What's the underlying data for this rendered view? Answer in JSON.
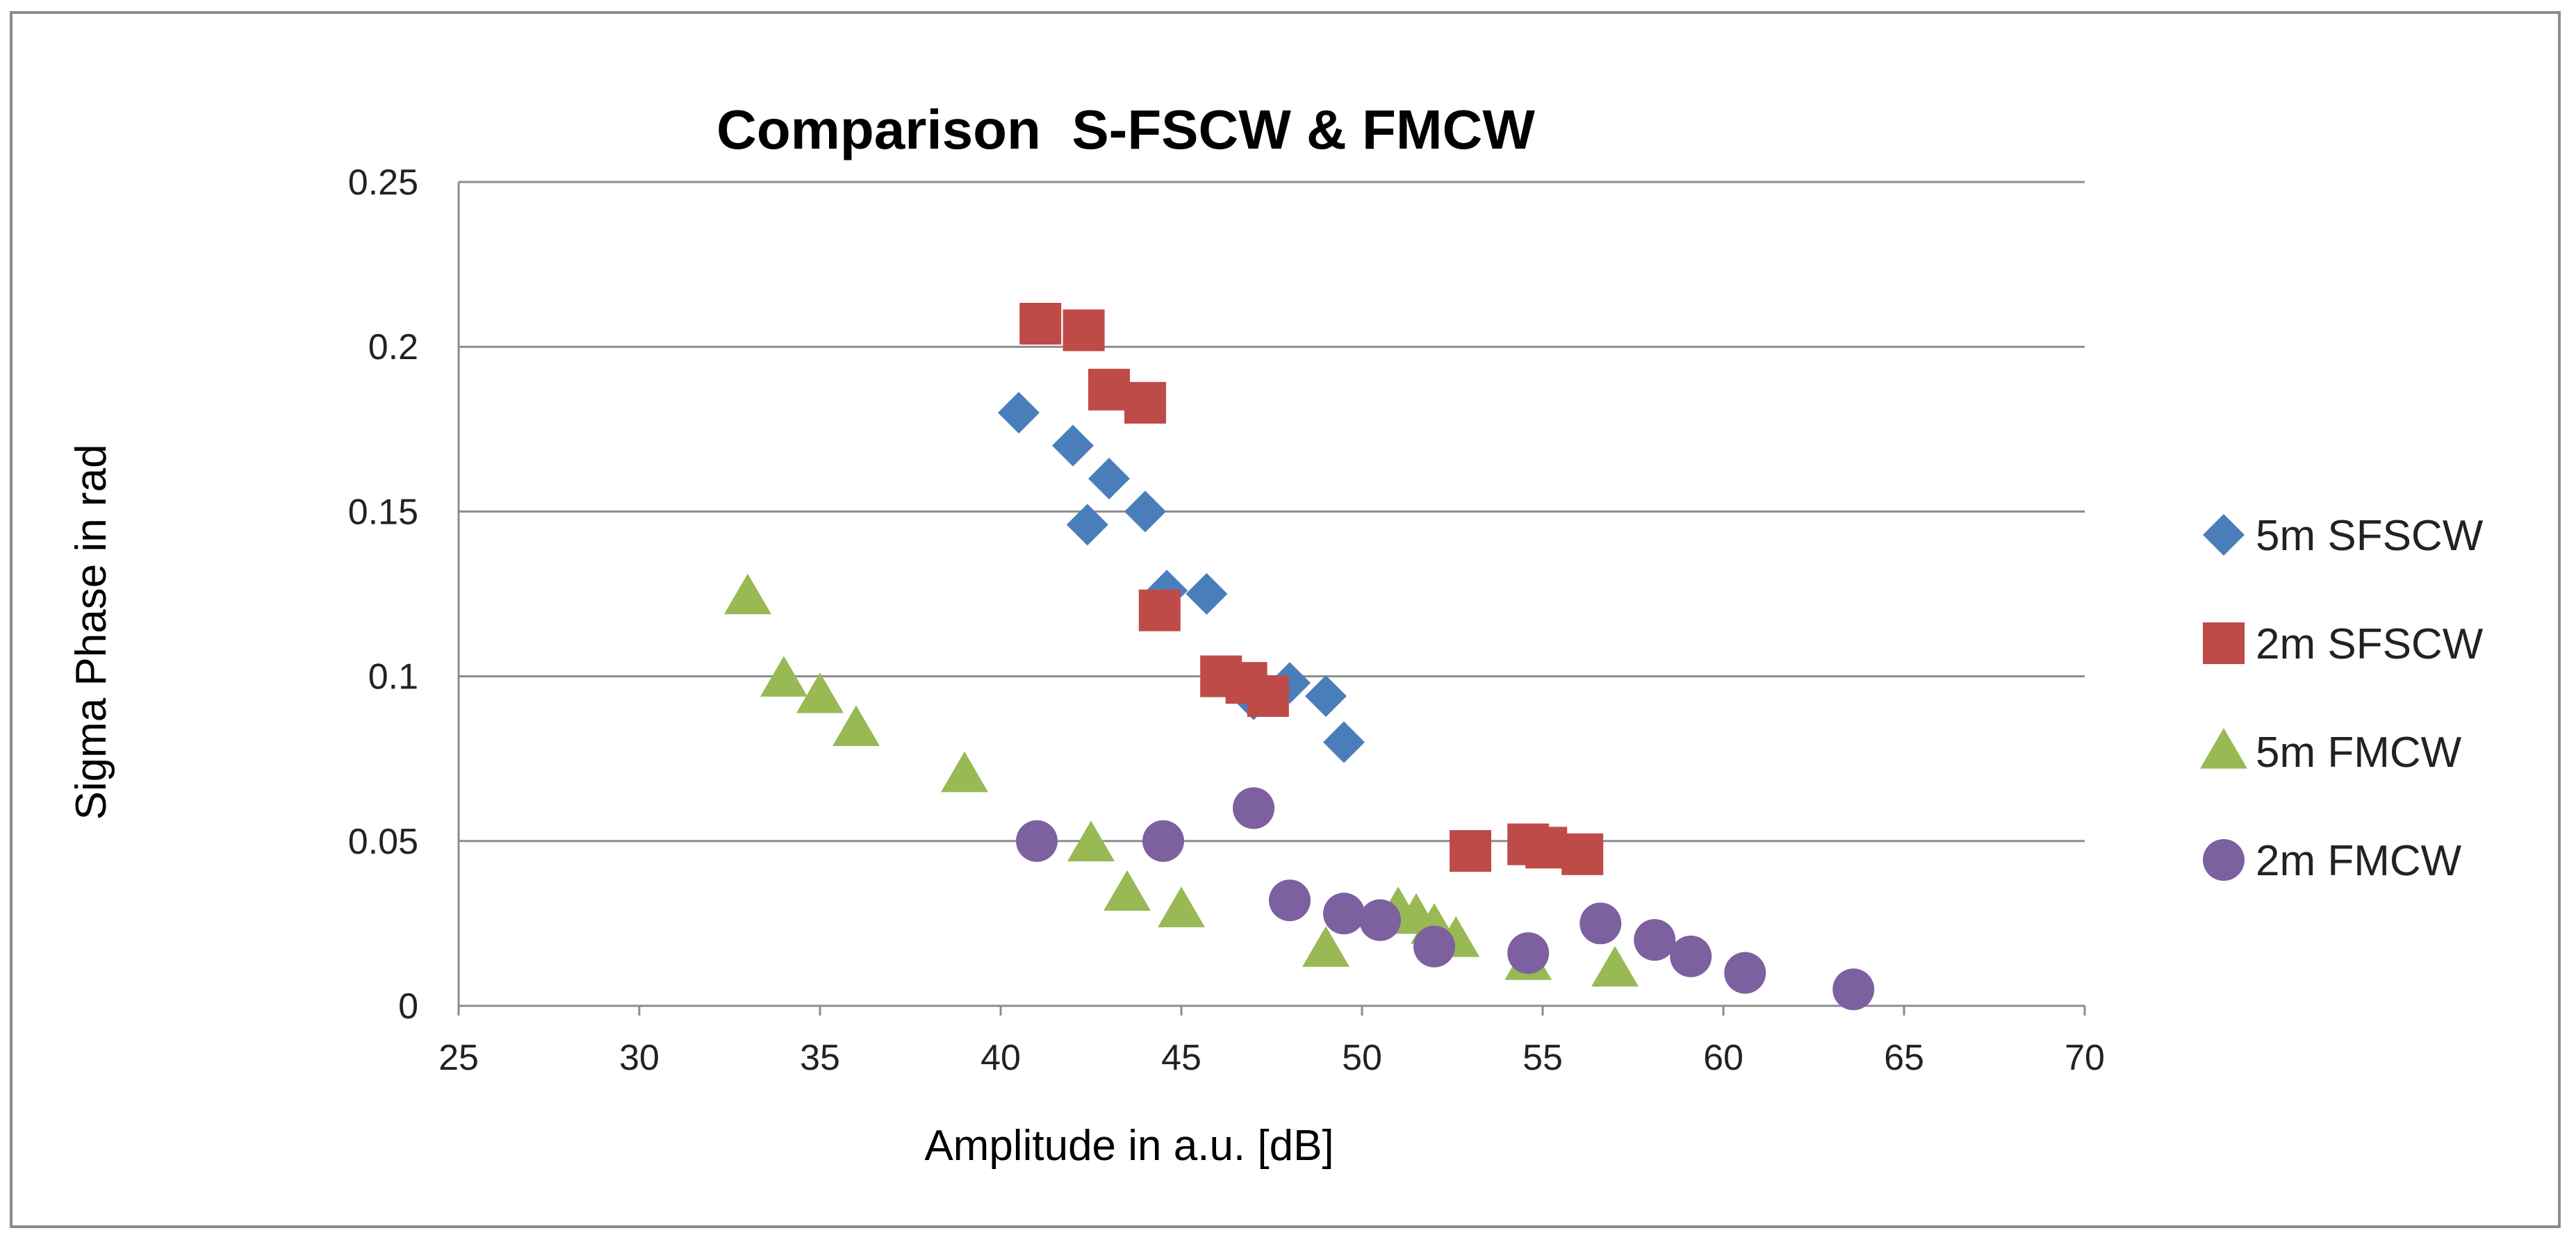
{
  "chart_data": {
    "type": "scatter",
    "title": "Comparison  S-FSCW & FMCW",
    "xlabel": "Amplitude in a.u. [dB]",
    "ylabel": "Sigma Phase in rad",
    "xlim": [
      25,
      70
    ],
    "ylim": [
      0,
      0.25
    ],
    "x_ticks": [
      "25",
      "30",
      "35",
      "40",
      "45",
      "50",
      "55",
      "60",
      "65",
      "70"
    ],
    "y_ticks": [
      "0",
      "0.05",
      "0.1",
      "0.15",
      "0.2",
      "0.25"
    ],
    "gridlines": "horizontal",
    "legend_position": "right",
    "series": [
      {
        "name": "5m SFSCW",
        "marker": "diamond",
        "color": "#4a7ebb",
        "points": [
          [
            40.5,
            0.18
          ],
          [
            42,
            0.17
          ],
          [
            43,
            0.16
          ],
          [
            42.4,
            0.146
          ],
          [
            44,
            0.15
          ],
          [
            44.6,
            0.126
          ],
          [
            45.7,
            0.125
          ],
          [
            47,
            0.093
          ],
          [
            48,
            0.098
          ],
          [
            49,
            0.094
          ],
          [
            49.5,
            0.08
          ]
        ]
      },
      {
        "name": "2m SFSCW",
        "marker": "square",
        "color": "#be4b48",
        "points": [
          [
            41.1,
            0.207
          ],
          [
            42.3,
            0.205
          ],
          [
            43,
            0.187
          ],
          [
            44,
            0.183
          ],
          [
            44.4,
            0.12
          ],
          [
            46.1,
            0.1
          ],
          [
            46.8,
            0.098
          ],
          [
            47.4,
            0.094
          ],
          [
            53,
            0.047
          ],
          [
            54.6,
            0.049
          ],
          [
            55.1,
            0.048
          ],
          [
            56.1,
            0.046
          ]
        ]
      },
      {
        "name": "5m FMCW",
        "marker": "triangle",
        "color": "#98b954",
        "points": [
          [
            33,
            0.124
          ],
          [
            34,
            0.099
          ],
          [
            35,
            0.094
          ],
          [
            36,
            0.084
          ],
          [
            39,
            0.07
          ],
          [
            42.5,
            0.049
          ],
          [
            43.5,
            0.034
          ],
          [
            45,
            0.029
          ],
          [
            49,
            0.017
          ],
          [
            51,
            0.029
          ],
          [
            51.5,
            0.027
          ],
          [
            52,
            0.024
          ],
          [
            52.6,
            0.02
          ],
          [
            54.6,
            0.013
          ],
          [
            57,
            0.011
          ]
        ]
      },
      {
        "name": "2m FMCW",
        "marker": "circle",
        "color": "#7d60a0",
        "points": [
          [
            41,
            0.05
          ],
          [
            44.5,
            0.05
          ],
          [
            47,
            0.06
          ],
          [
            48,
            0.032
          ],
          [
            49.5,
            0.028
          ],
          [
            50.5,
            0.026
          ],
          [
            52,
            0.018
          ],
          [
            54.6,
            0.016
          ],
          [
            56.6,
            0.025
          ],
          [
            58.1,
            0.02
          ],
          [
            59.1,
            0.015
          ],
          [
            60.6,
            0.01
          ],
          [
            63.6,
            0.005
          ]
        ]
      }
    ]
  }
}
